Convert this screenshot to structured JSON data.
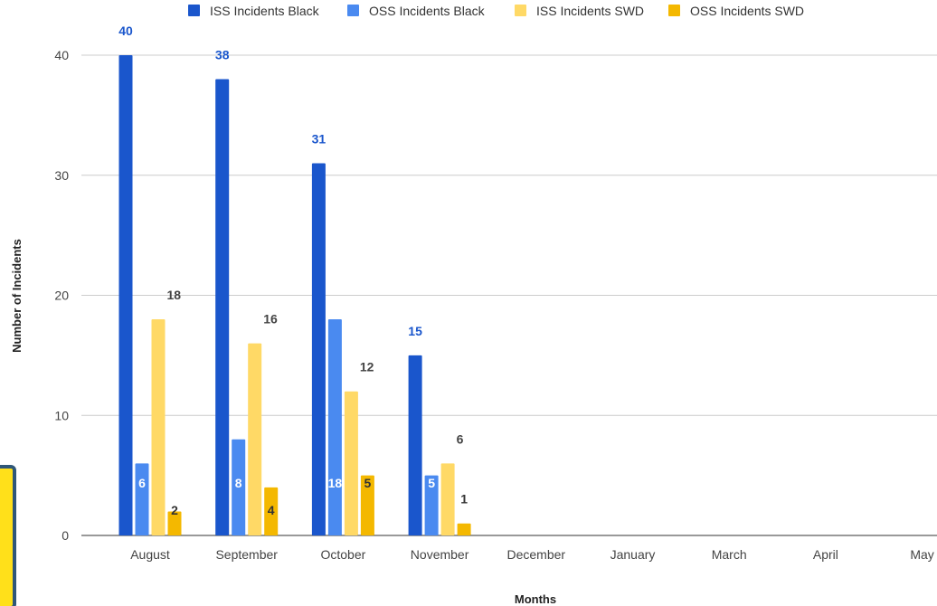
{
  "chart_data": {
    "type": "bar",
    "title": "",
    "xlabel": "Months",
    "ylabel": "Number of Incidents",
    "ylim": [
      0,
      40
    ],
    "yticks": [
      0,
      10,
      20,
      30,
      40
    ],
    "grid": true,
    "legend_position": "top",
    "categories": [
      "August",
      "September",
      "October",
      "November",
      "December",
      "January",
      "March",
      "April",
      "May"
    ],
    "series": [
      {
        "name": "ISS Incidents Black",
        "color": "#1a56cc",
        "label_color": "#1a56cc",
        "values": [
          40,
          38,
          31,
          15,
          null,
          null,
          null,
          null,
          null
        ]
      },
      {
        "name": "OSS Incidents Black",
        "color": "#4a8af0",
        "label_color": "#4a8af0",
        "values": [
          6,
          8,
          18,
          5,
          null,
          null,
          null,
          null,
          null
        ]
      },
      {
        "name": "ISS Incidents SWD",
        "color": "#ffd966",
        "label_color": "#444444",
        "values": [
          18,
          16,
          12,
          6,
          null,
          null,
          null,
          null,
          null
        ]
      },
      {
        "name": "OSS Incidents SWD",
        "color": "#f4b800",
        "label_color": "#333333",
        "values": [
          2,
          4,
          5,
          1,
          null,
          null,
          null,
          null,
          null
        ]
      }
    ]
  }
}
